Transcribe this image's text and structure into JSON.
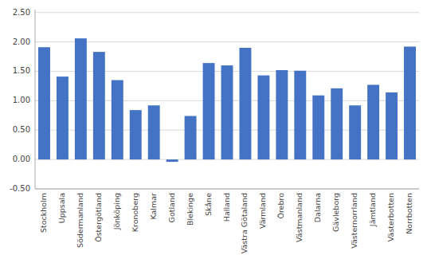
{
  "chart_data": {
    "type": "bar",
    "categories": [
      "Stockholm",
      "Uppsala",
      "Södermanland",
      "Östergötland",
      "Jönköping",
      "Kronoberg",
      "Kalmar",
      "Gotland",
      "Blekinge",
      "Skåne",
      "Halland",
      "Västra Götaland",
      "Värmland",
      "Örebro",
      "Västmanland",
      "Dalarna",
      "Gävleborg",
      "Västernorrland",
      "Jämtland",
      "Västerbotten",
      "Norrbotten"
    ],
    "values": [
      1.91,
      1.41,
      2.06,
      1.83,
      1.35,
      0.84,
      0.92,
      -0.04,
      0.74,
      1.64,
      1.6,
      1.9,
      1.43,
      1.52,
      1.51,
      1.09,
      1.21,
      0.92,
      1.27,
      1.14,
      1.92
    ],
    "color": "#4472C4",
    "ylim": [
      -0.5,
      2.55
    ],
    "yticks": [
      {
        "value": -0.5,
        "label": "-0.50"
      },
      {
        "value": 0,
        "label": "0.00"
      },
      {
        "value": 0.5,
        "label": "0.50"
      },
      {
        "value": 1,
        "label": "1.00"
      },
      {
        "value": 1.5,
        "label": "1.50"
      },
      {
        "value": 2,
        "label": "2.00"
      },
      {
        "value": 2.5,
        "label": "2.50"
      }
    ],
    "grid": true
  }
}
